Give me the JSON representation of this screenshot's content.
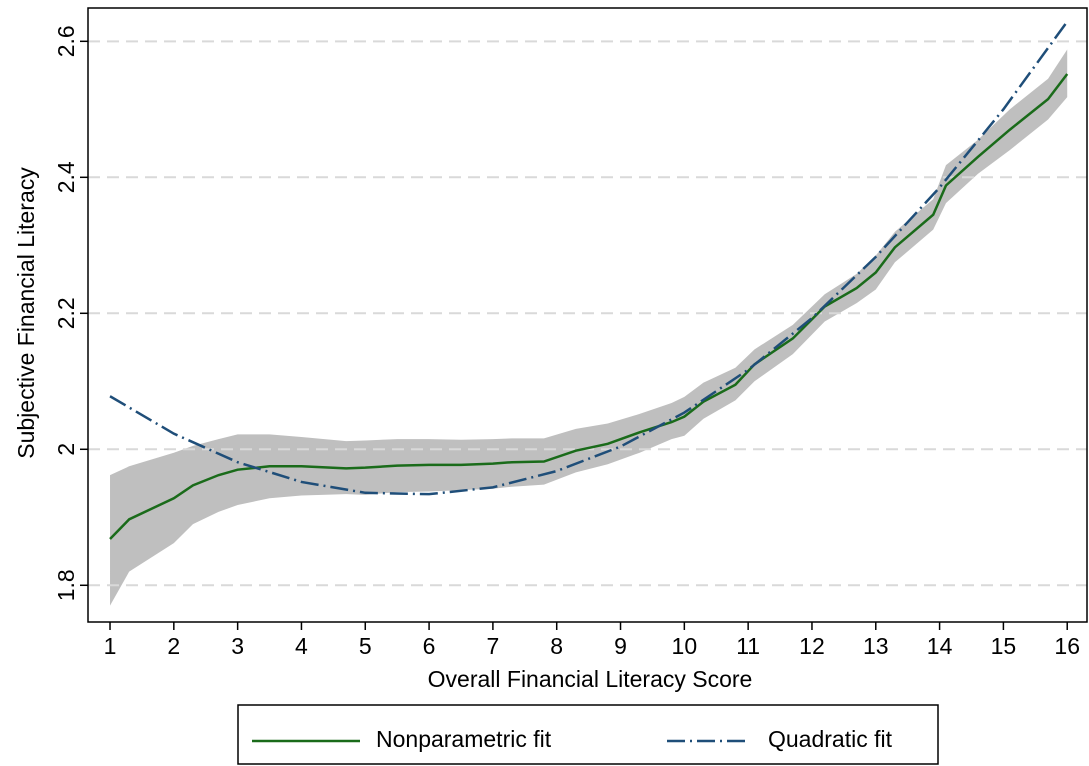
{
  "chart_data": {
    "type": "line",
    "x_label": "Overall Financial Literacy Score",
    "y_label": "Subjective Financial Literacy",
    "xlim": [
      0.655,
      16.31
    ],
    "ylim": [
      1.746,
      2.649
    ],
    "xticks": [
      1,
      2,
      3,
      4,
      5,
      6,
      7,
      8,
      9,
      10,
      11,
      12,
      13,
      14,
      15,
      16
    ],
    "yticks": [
      1.8,
      2,
      2.2,
      2.4,
      2.6
    ],
    "grid": true,
    "legend_position": "bottom",
    "x": [
      1,
      1.3,
      2,
      2.3,
      2.7,
      3,
      3.5,
      4,
      4.7,
      5,
      5.5,
      6,
      6.5,
      7,
      7.3,
      7.8,
      8.3,
      8.8,
      9.3,
      9.8,
      10,
      10.3,
      10.8,
      11.1,
      11.7,
      12.2,
      12.7,
      13,
      13.3,
      13.9,
      14.1,
      14.6,
      15.1,
      15.7,
      16
    ],
    "band": {
      "color": "#bfbfbf",
      "upper": [
        1.962,
        1.975,
        1.995,
        2.005,
        2.015,
        2.022,
        2.022,
        2.018,
        2.012,
        2.013,
        2.015,
        2.015,
        2.014,
        2.015,
        2.016,
        2.016,
        2.03,
        2.038,
        2.052,
        2.068,
        2.077,
        2.098,
        2.12,
        2.147,
        2.183,
        2.228,
        2.258,
        2.285,
        2.32,
        2.368,
        2.418,
        2.455,
        2.5,
        2.545,
        2.588
      ],
      "lower": [
        1.77,
        1.82,
        1.862,
        1.89,
        1.908,
        1.918,
        1.928,
        1.932,
        1.934,
        1.933,
        1.937,
        1.938,
        1.94,
        1.942,
        1.945,
        1.948,
        1.966,
        1.978,
        1.995,
        2.015,
        2.02,
        2.045,
        2.072,
        2.1,
        2.14,
        2.188,
        2.215,
        2.235,
        2.275,
        2.323,
        2.362,
        2.405,
        2.44,
        2.485,
        2.518
      ]
    },
    "series": [
      {
        "name": "Nonparametric fit",
        "color": "#1a6b1a",
        "values": [
          1.868,
          1.897,
          1.928,
          1.947,
          1.962,
          1.97,
          1.975,
          1.975,
          1.972,
          1.973,
          1.976,
          1.977,
          1.977,
          1.979,
          1.981,
          1.982,
          1.998,
          2.008,
          2.025,
          2.04,
          2.048,
          2.07,
          2.095,
          2.125,
          2.163,
          2.21,
          2.237,
          2.26,
          2.297,
          2.345,
          2.388,
          2.43,
          2.47,
          2.515,
          2.552
        ]
      },
      {
        "name": "Quadratic fit",
        "color": "#1f4e79",
        "dash": "18 5 2 5",
        "x": [
          1,
          2,
          3,
          4,
          5,
          6,
          7,
          8,
          9,
          10,
          11,
          12,
          13,
          14,
          15,
          16
        ],
        "values": [
          2.078,
          2.023,
          1.981,
          1.952,
          1.936,
          1.934,
          1.944,
          1.968,
          2.004,
          2.054,
          2.117,
          2.193,
          2.283,
          2.385,
          2.5,
          2.629
        ]
      }
    ]
  }
}
